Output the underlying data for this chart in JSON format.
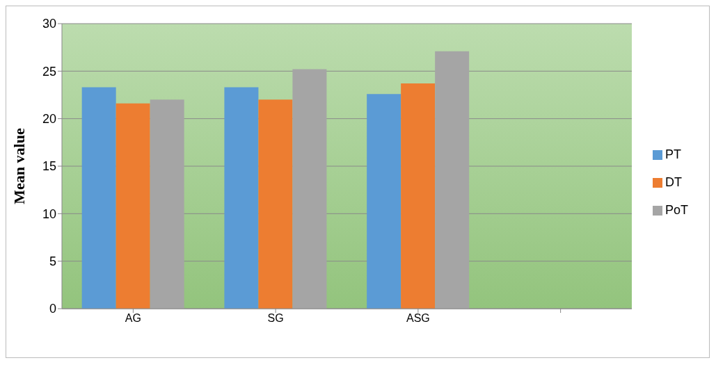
{
  "chart_data": {
    "type": "bar",
    "ylabel": "Mean value",
    "categories": [
      "AG",
      "SG",
      "ASG",
      null
    ],
    "series": [
      {
        "name": "PT",
        "color": "#5b9bd5",
        "values": [
          23.3,
          23.3,
          22.6,
          null
        ]
      },
      {
        "name": "DT",
        "color": "#ed7d31",
        "values": [
          21.6,
          22.0,
          23.7,
          null
        ]
      },
      {
        "name": "PoT",
        "color": "#a5a5a5",
        "values": [
          22.0,
          25.2,
          27.1,
          null
        ]
      }
    ],
    "ylim": [
      0,
      30
    ],
    "yticks": [
      0,
      5,
      10,
      15,
      20,
      25,
      30
    ],
    "grid": "y",
    "legend": "right"
  }
}
